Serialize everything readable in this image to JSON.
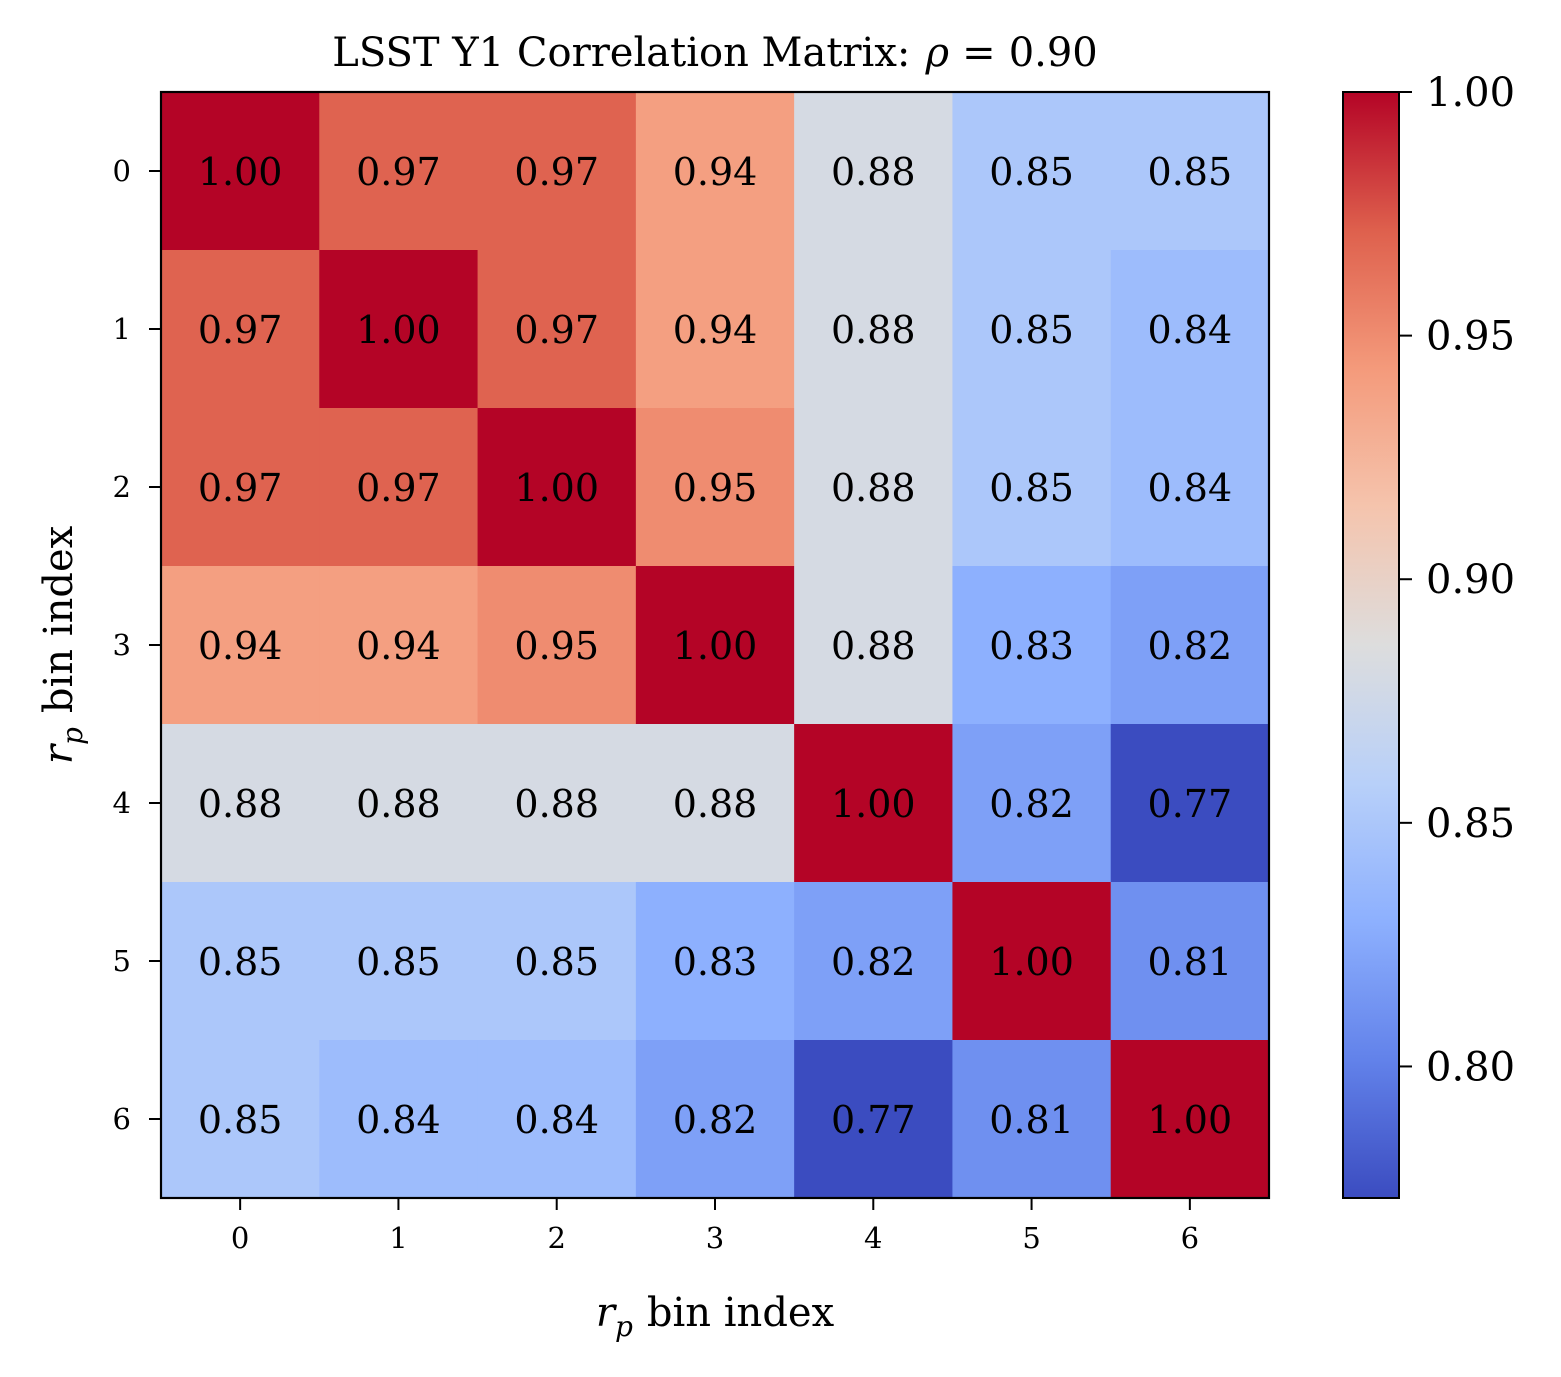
{
  "chart_data": {
    "type": "heatmap",
    "title": {
      "prefix": "LSST Y1 Correlation Matrix:",
      "symbol": "ρ",
      "equals": "=",
      "value": "0.90"
    },
    "xlabel": {
      "symbol": "r",
      "subscript": "p",
      "text": "bin index"
    },
    "ylabel": {
      "symbol": "r",
      "subscript": "p",
      "text": "bin index"
    },
    "x_ticks": [
      "0",
      "1",
      "2",
      "3",
      "4",
      "5",
      "6"
    ],
    "y_ticks": [
      "0",
      "1",
      "2",
      "3",
      "4",
      "5",
      "6"
    ],
    "matrix": [
      [
        1.0,
        0.97,
        0.97,
        0.94,
        0.88,
        0.85,
        0.85
      ],
      [
        0.97,
        1.0,
        0.97,
        0.94,
        0.88,
        0.85,
        0.84
      ],
      [
        0.97,
        0.97,
        1.0,
        0.95,
        0.88,
        0.85,
        0.84
      ],
      [
        0.94,
        0.94,
        0.95,
        1.0,
        0.88,
        0.83,
        0.82
      ],
      [
        0.88,
        0.88,
        0.88,
        0.88,
        1.0,
        0.82,
        0.77
      ],
      [
        0.85,
        0.85,
        0.85,
        0.83,
        0.82,
        1.0,
        0.81
      ],
      [
        0.85,
        0.84,
        0.84,
        0.82,
        0.77,
        0.81,
        1.0
      ]
    ],
    "value_format_decimals": 2,
    "colormap": "coolwarm",
    "color_range": [
      0.773,
      1.0
    ],
    "colorbar": {
      "ticks": [
        1.0,
        0.95,
        0.9,
        0.85,
        0.8
      ],
      "tick_labels": [
        "1.00",
        "0.95",
        "0.90",
        "0.85",
        "0.80"
      ]
    },
    "grid": false
  }
}
